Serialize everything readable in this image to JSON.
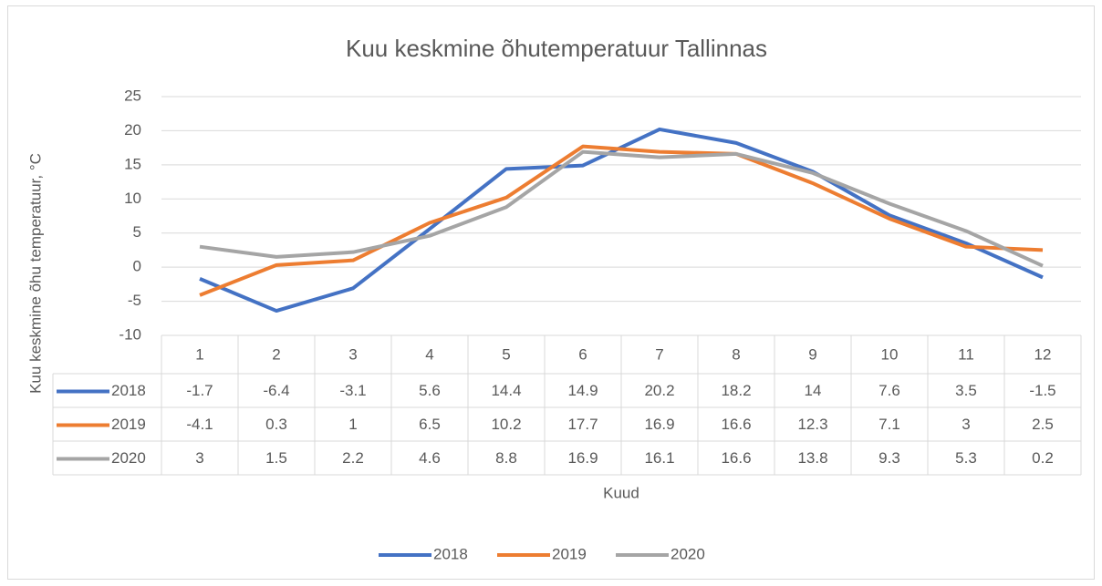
{
  "chart_data": {
    "type": "line",
    "title": "Kuu keskmine õhutemperatuur Tallinnas",
    "x_label": "Kuud",
    "y_label": "Kuu keskmine õhu temperatuur, °C",
    "categories": [
      "1",
      "2",
      "3",
      "4",
      "5",
      "6",
      "7",
      "8",
      "9",
      "10",
      "11",
      "12"
    ],
    "series": [
      {
        "name": "2018",
        "color": "#4472c4",
        "values": [
          -1.7,
          -6.4,
          -3.1,
          5.6,
          14.4,
          14.9,
          20.2,
          18.2,
          14,
          7.6,
          3.5,
          -1.5
        ]
      },
      {
        "name": "2019",
        "color": "#ed7d31",
        "values": [
          -4.1,
          0.3,
          1,
          6.5,
          10.2,
          17.7,
          16.9,
          16.6,
          12.3,
          7.1,
          3,
          2.5
        ]
      },
      {
        "name": "2020",
        "color": "#a5a5a5",
        "values": [
          3,
          1.5,
          2.2,
          4.6,
          8.8,
          16.9,
          16.1,
          16.6,
          13.8,
          9.3,
          5.3,
          0.2
        ]
      }
    ],
    "ylim": [
      -10,
      25
    ],
    "yticks": [
      -10,
      -5,
      0,
      5,
      10,
      15,
      20,
      25
    ],
    "grid": true,
    "legend": "bottom"
  }
}
